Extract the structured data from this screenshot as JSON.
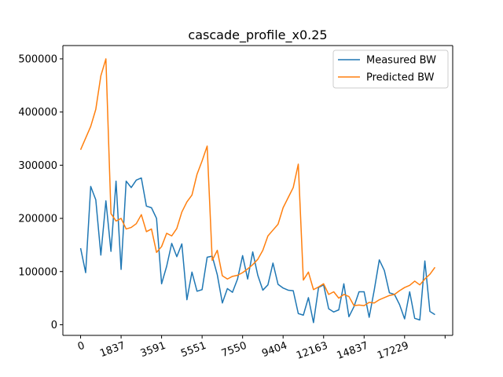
{
  "chart_data": {
    "type": "line",
    "title": "cascade_profile_x0.25",
    "xlabel": "",
    "ylabel": "",
    "x_tick_labels": [
      "0",
      "1837",
      "3591",
      "5551",
      "7550",
      "9404",
      "12163",
      "14837",
      "17229"
    ],
    "y_ticks": [
      0,
      100000,
      200000,
      300000,
      400000,
      500000
    ],
    "y_tick_labels": [
      "0",
      "100000",
      "200000",
      "300000",
      "400000",
      "500000"
    ],
    "ylim": [
      -20000,
      525000
    ],
    "grid": false,
    "legend_position": "top-right",
    "colors": {
      "measured": "#1f77b4",
      "predicted": "#ff7f0e"
    },
    "series": [
      {
        "name": "Measured BW",
        "color": "#1f77b4",
        "values": [
          144000,
          98000,
          260000,
          235000,
          131000,
          233000,
          138000,
          270000,
          104000,
          270000,
          258000,
          272000,
          276000,
          223000,
          220000,
          200000,
          77000,
          110000,
          153000,
          128000,
          152000,
          47000,
          99000,
          63000,
          66000,
          127000,
          129000,
          94000,
          41000,
          68000,
          61000,
          86000,
          130000,
          86000,
          137000,
          93000,
          65000,
          75000,
          116000,
          76000,
          69000,
          65000,
          64000,
          21000,
          18000,
          51000,
          4000,
          70000,
          75000,
          30000,
          24000,
          28000,
          77000,
          15000,
          34000,
          62000,
          62000,
          14000,
          65000,
          122000,
          102000,
          60000,
          57000,
          38000,
          11000,
          62000,
          12000,
          9000,
          120000,
          25000,
          19000
        ]
      },
      {
        "name": "Predicted BW",
        "color": "#ff7f0e",
        "values": [
          329000,
          351000,
          373000,
          405000,
          468000,
          500000,
          209000,
          195000,
          200000,
          180000,
          183000,
          190000,
          207000,
          175000,
          180000,
          136000,
          147000,
          172000,
          167000,
          181000,
          212000,
          231000,
          244000,
          283000,
          308000,
          336000,
          121000,
          140000,
          92000,
          86000,
          91000,
          93000,
          98000,
          105000,
          113000,
          123000,
          140000,
          167000,
          178000,
          189000,
          220000,
          239000,
          258000,
          302000,
          84000,
          99000,
          66000,
          71000,
          77000,
          57000,
          62000,
          50000,
          57000,
          53000,
          36000,
          37000,
          36000,
          42000,
          41000,
          47000,
          51000,
          55000,
          57000,
          64000,
          70000,
          74000,
          82000,
          75000,
          86000,
          95000,
          108000
        ]
      }
    ]
  }
}
